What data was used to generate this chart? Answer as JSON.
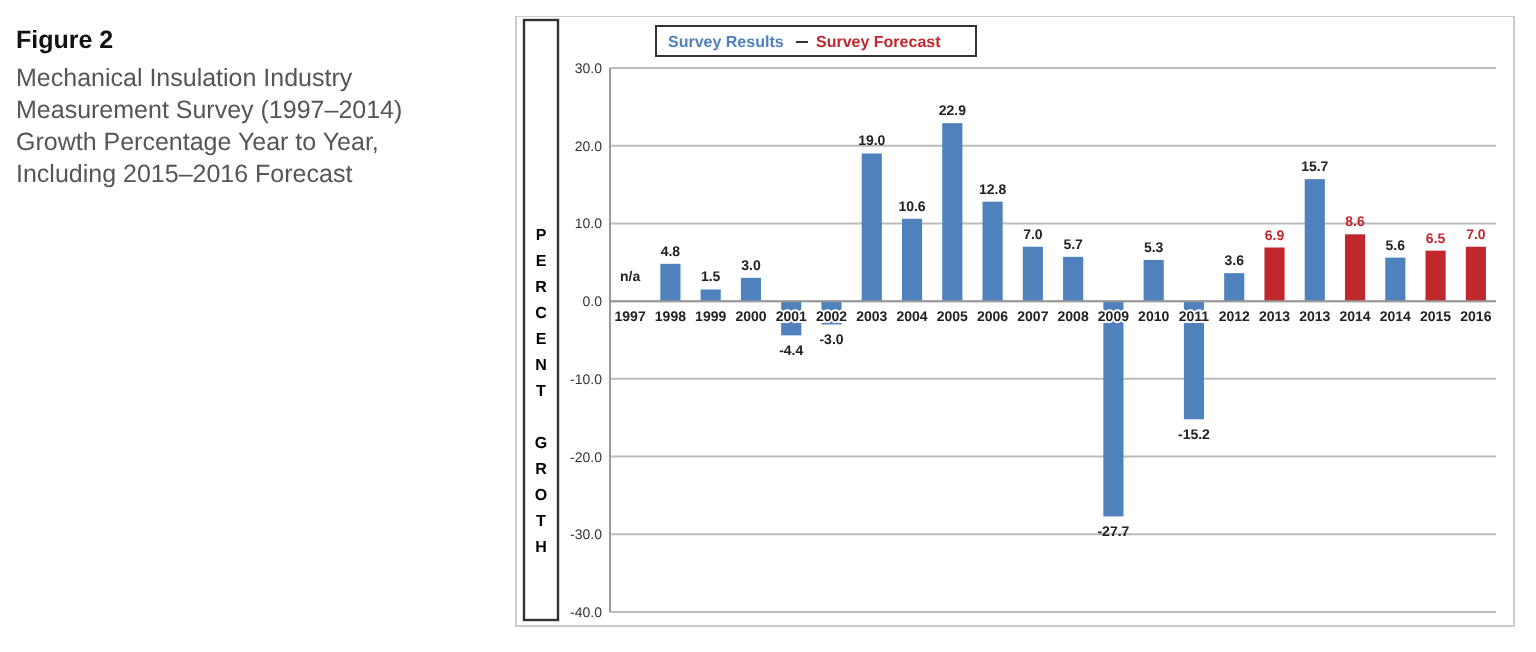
{
  "chart_data": {
    "type": "bar",
    "title": "Figure 2",
    "subtitle": "Mechanical Insulation Industry Measurement Survey (1997–2014) Growth Percentage Year to Year, Including 2015–2016 Forecast",
    "ylabel": "PERCENT GROTH",
    "categories": [
      "1997",
      "1998",
      "1999",
      "2000",
      "2001",
      "2002",
      "2003",
      "2004",
      "2005",
      "2006",
      "2007",
      "2008",
      "2009",
      "2010",
      "2011",
      "2012",
      "2013",
      "2013",
      "2014",
      "2014",
      "2015",
      "2016"
    ],
    "series": [
      {
        "name": "Survey Results",
        "color": "#4f81bd",
        "values": [
          null,
          4.8,
          1.5,
          3.0,
          -4.4,
          -3.0,
          19.0,
          10.6,
          22.9,
          12.8,
          7.0,
          5.7,
          -27.7,
          5.3,
          -15.2,
          3.6,
          null,
          15.7,
          null,
          5.6,
          null,
          null
        ],
        "value_labels": [
          "n/a",
          "4.8",
          "1.5",
          "3.0",
          "-4.4",
          "-3.0",
          "19.0",
          "10.6",
          "22.9",
          "12.8",
          "7.0",
          "5.7",
          "-27.7",
          "5.3",
          "-15.2",
          "3.6",
          null,
          "15.7",
          null,
          "5.6",
          null,
          null
        ]
      },
      {
        "name": "Survey Forecast",
        "color": "#c0282d",
        "values": [
          null,
          null,
          null,
          null,
          null,
          null,
          null,
          null,
          null,
          null,
          null,
          null,
          null,
          null,
          null,
          null,
          6.9,
          null,
          8.6,
          null,
          6.5,
          7.0
        ],
        "value_labels": [
          null,
          null,
          null,
          null,
          null,
          null,
          null,
          null,
          null,
          null,
          null,
          null,
          null,
          null,
          null,
          null,
          "6.9",
          null,
          "8.6",
          null,
          "6.5",
          "7.0"
        ]
      }
    ],
    "ylim": [
      -40,
      30
    ],
    "yticks": [
      {
        "value": -40,
        "label": "-40.0"
      },
      {
        "value": -30,
        "label": "-30.0"
      },
      {
        "value": -20,
        "label": "-20.0"
      },
      {
        "value": -10,
        "label": "-10.0"
      },
      {
        "value": 0,
        "label": "0.0"
      },
      {
        "value": 10,
        "label": "10.0"
      },
      {
        "value": 20,
        "label": "20.0"
      },
      {
        "value": 30,
        "label": "30.0"
      }
    ],
    "grid": "y",
    "legend": "top left"
  }
}
